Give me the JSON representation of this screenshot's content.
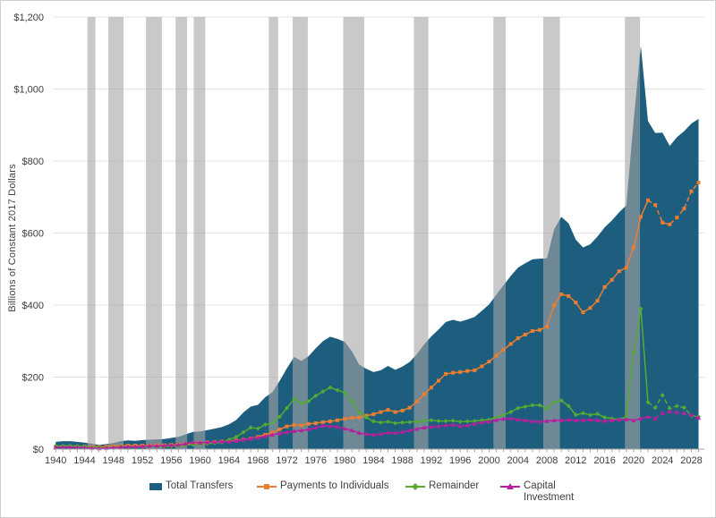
{
  "figure": {
    "y_axis_title": "Billions of Constant 2017 Dollars"
  },
  "chart_data": {
    "type": "area",
    "title": "",
    "xlabel": "",
    "ylabel": "Billions of Constant 2017 Dollars",
    "x": [
      1940,
      1941,
      1942,
      1943,
      1944,
      1945,
      1946,
      1947,
      1948,
      1949,
      1950,
      1951,
      1952,
      1953,
      1954,
      1955,
      1956,
      1957,
      1958,
      1959,
      1960,
      1961,
      1962,
      1963,
      1964,
      1965,
      1966,
      1967,
      1968,
      1969,
      1970,
      1971,
      1972,
      1973,
      1974,
      1975,
      1976,
      1977,
      1978,
      1979,
      1980,
      1981,
      1982,
      1983,
      1984,
      1985,
      1986,
      1987,
      1988,
      1989,
      1990,
      1991,
      1992,
      1993,
      1994,
      1995,
      1996,
      1997,
      1998,
      1999,
      2000,
      2001,
      2002,
      2003,
      2004,
      2005,
      2006,
      2007,
      2008,
      2009,
      2010,
      2011,
      2012,
      2013,
      2014,
      2015,
      2016,
      2017,
      2018,
      2019,
      2020,
      2021,
      2022,
      2023,
      2024,
      2025,
      2026,
      2027,
      2028,
      2029
    ],
    "x_tick_labels": [
      "1940",
      "1944",
      "1948",
      "1952",
      "1956",
      "1960",
      "1964",
      "1968",
      "1972",
      "1976",
      "1980",
      "1984",
      "1988",
      "1992",
      "1996",
      "2000",
      "2004",
      "2008",
      "2012",
      "2016",
      "2020",
      "2024",
      "2028"
    ],
    "y_tick_labels": [
      "$0",
      "$200",
      "$400",
      "$600",
      "$800",
      "$1,000",
      "$1,200"
    ],
    "y_ticks": [
      0,
      200,
      400,
      600,
      800,
      1000,
      1200
    ],
    "xlim": [
      1939.6,
      2029.8
    ],
    "ylim": [
      0,
      1200
    ],
    "grid": "horizontal",
    "legend_position": "bottom",
    "projection_start_year": 2022,
    "recession_band_color": "#a5a5a5",
    "recession_band_opacity": 0.6,
    "recession_bands": [
      [
        1944.4,
        1945.5
      ],
      [
        1947.3,
        1949.4
      ],
      [
        1952.5,
        1954.7
      ],
      [
        1956.6,
        1958.2
      ],
      [
        1959.1,
        1960.7
      ],
      [
        1969.5,
        1970.8
      ],
      [
        1972.8,
        1974.9
      ],
      [
        1979.8,
        1982.7
      ],
      [
        1989.6,
        1991.6
      ],
      [
        2000.6,
        2002.3
      ],
      [
        2007.5,
        2009.8
      ],
      [
        2018.8,
        2020.9
      ]
    ],
    "series": [
      {
        "name": "Total Transfers",
        "type": "area",
        "color": "#1d5e7e",
        "values": [
          20,
          22,
          22,
          20,
          18,
          15,
          12,
          14,
          17,
          22,
          24,
          23,
          25,
          26,
          27,
          28,
          31,
          34,
          41,
          48,
          49,
          53,
          57,
          61,
          69,
          81,
          102,
          118,
          123,
          144,
          158,
          189,
          224,
          256,
          245,
          258,
          280,
          300,
          312,
          306,
          298,
          272,
          235,
          223,
          214,
          219,
          231,
          220,
          229,
          242,
          264,
          290,
          313,
          332,
          353,
          359,
          354,
          360,
          367,
          384,
          402,
          429,
          455,
          481,
          504,
          516,
          527,
          529,
          530,
          610,
          645,
          627,
          582,
          560,
          569,
          590,
          616,
          635,
          658,
          677,
          910,
          1120,
          911,
          878,
          879,
          842,
          866,
          883,
          904,
          917
        ]
      },
      {
        "name": "Payments to Individuals",
        "type": "line",
        "marker": "square",
        "color": "#ed7d31",
        "values": [
          7,
          7,
          7,
          7,
          7,
          7,
          6,
          7,
          8,
          9,
          10,
          10,
          10,
          10,
          11,
          11,
          12,
          13,
          15,
          16,
          17,
          19,
          20,
          21,
          22,
          24,
          26,
          29,
          34,
          40,
          46,
          55,
          63,
          67,
          66,
          70,
          72,
          75,
          77,
          80,
          84,
          87,
          88,
          93,
          97,
          103,
          109,
          103,
          107,
          115,
          132,
          152,
          171,
          190,
          209,
          212,
          214,
          217,
          219,
          230,
          243,
          260,
          276,
          292,
          308,
          318,
          328,
          331,
          340,
          400,
          430,
          425,
          407,
          380,
          392,
          412,
          450,
          470,
          494,
          504,
          560,
          645,
          691,
          678,
          629,
          624,
          643,
          668,
          716,
          740
        ]
      },
      {
        "name": "Remainder",
        "type": "line",
        "marker": "diamond",
        "color": "#55ac32",
        "values": [
          8,
          9,
          9,
          8,
          7,
          5,
          4,
          4,
          5,
          7,
          7,
          6,
          7,
          7,
          7,
          7,
          8,
          9,
          11,
          13,
          14,
          15,
          17,
          19,
          26,
          34,
          47,
          60,
          57,
          68,
          72,
          90,
          114,
          139,
          127,
          133,
          148,
          160,
          171,
          164,
          157,
          133,
          102,
          88,
          77,
          74,
          76,
          72,
          74,
          75,
          76,
          78,
          80,
          78,
          78,
          79,
          76,
          77,
          78,
          80,
          82,
          88,
          95,
          103,
          114,
          118,
          122,
          122,
          112,
          130,
          135,
          120,
          95,
          100,
          95,
          98,
          88,
          85,
          82,
          90,
          270,
          390,
          130,
          115,
          150,
          113,
          120,
          115,
          93,
          90
        ]
      },
      {
        "name": "Capital Investment",
        "type": "line",
        "marker": "triangle",
        "color": "#b81f9e",
        "values": [
          5,
          6,
          6,
          5,
          4,
          3,
          2,
          3,
          4,
          6,
          7,
          7,
          8,
          9,
          9,
          10,
          11,
          12,
          15,
          19,
          18,
          19,
          20,
          21,
          21,
          23,
          26,
          29,
          32,
          36,
          40,
          44,
          47,
          50,
          52,
          55,
          60,
          65,
          64,
          62,
          57,
          52,
          45,
          42,
          40,
          42,
          46,
          45,
          48,
          52,
          56,
          60,
          62,
          64,
          66,
          68,
          64,
          66,
          70,
          74,
          77,
          81,
          84,
          86,
          82,
          80,
          77,
          76,
          78,
          80,
          80,
          82,
          80,
          80,
          82,
          80,
          78,
          80,
          82,
          83,
          80,
          85,
          90,
          85,
          100,
          105,
          103,
          100,
          95,
          87
        ]
      }
    ]
  }
}
